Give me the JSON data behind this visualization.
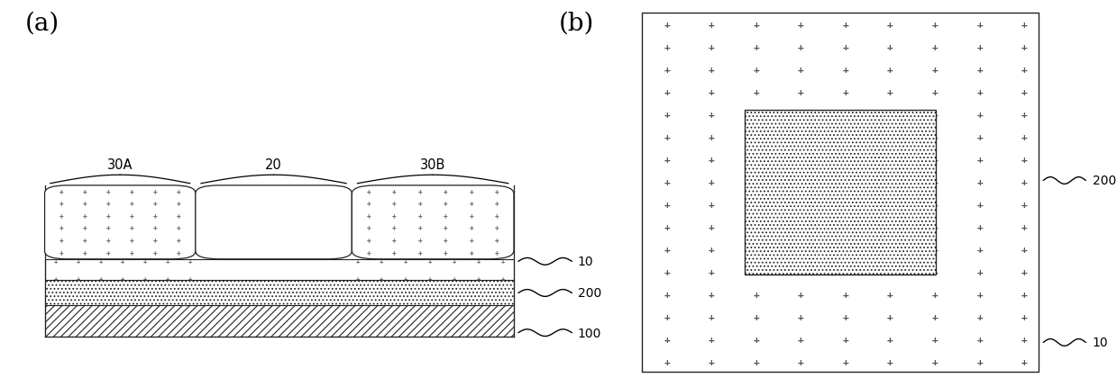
{
  "bg_color": "#ffffff",
  "label_a": "(a)",
  "label_b": "(b)",
  "label_fontsize": 20,
  "plus_color_dark": "#444444",
  "plus_color_light": "#888888",
  "line_color": "#222222",
  "hatch_lw": 0.6
}
